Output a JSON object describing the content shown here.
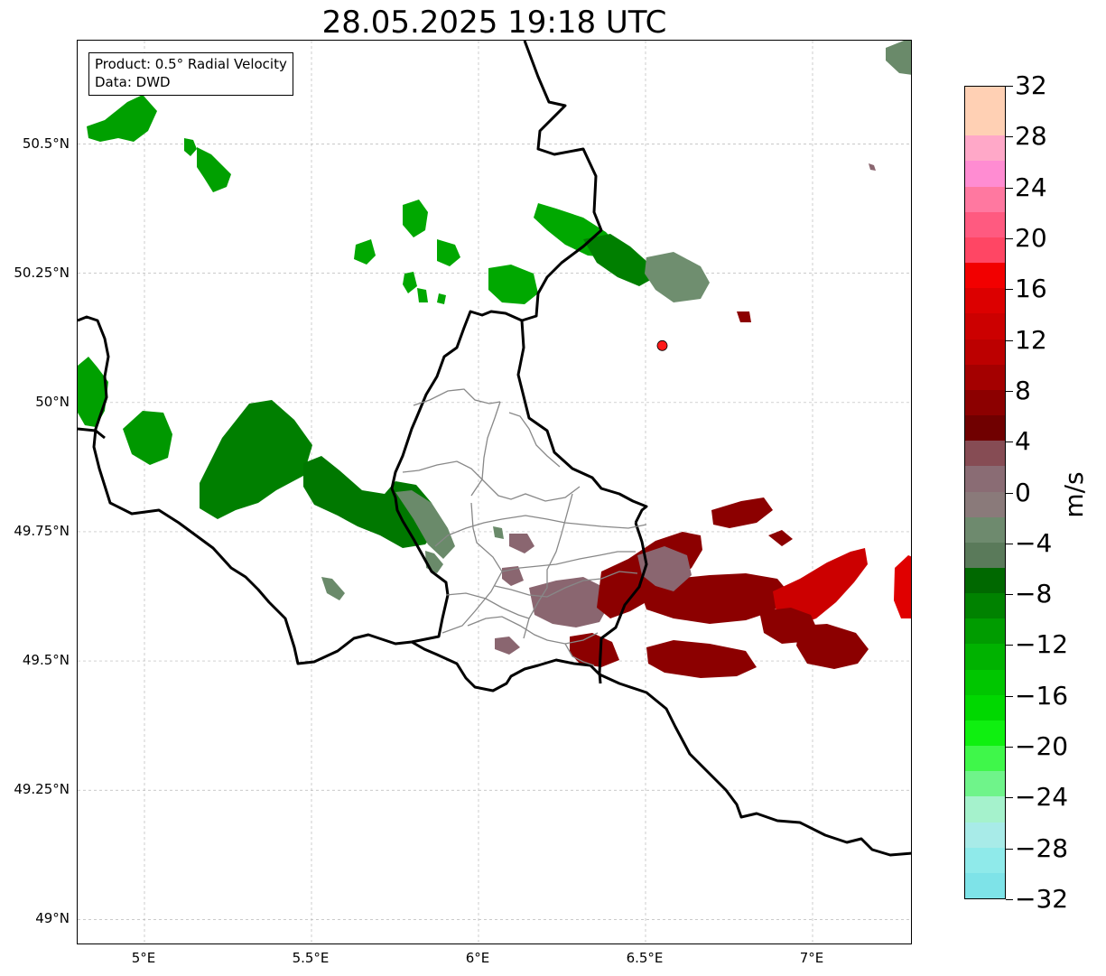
{
  "title": "28.05.2025 19:18 UTC",
  "info_box": {
    "line1": "Product: 0.5° Radial Velocity",
    "line2": "Data: DWD"
  },
  "map_extent": {
    "lon_min": 4.8,
    "lon_max": 7.3,
    "lat_min": 48.95,
    "lat_max": 50.7
  },
  "lat_ticks": [
    {
      "value": 50.5,
      "label": "50.5°N"
    },
    {
      "value": 50.25,
      "label": "50.25°N"
    },
    {
      "value": 50.0,
      "label": "50°N"
    },
    {
      "value": 49.75,
      "label": "49.75°N"
    },
    {
      "value": 49.5,
      "label": "49.5°N"
    },
    {
      "value": 49.25,
      "label": "49.25°N"
    },
    {
      "value": 49.0,
      "label": "49°N"
    }
  ],
  "lon_ticks": [
    {
      "value": 5.0,
      "label": "5°E"
    },
    {
      "value": 5.5,
      "label": "5.5°E"
    },
    {
      "value": 6.0,
      "label": "6°E"
    },
    {
      "value": 6.5,
      "label": "6.5°E"
    },
    {
      "value": 7.0,
      "label": "7°E"
    }
  ],
  "grid": true,
  "radar_site": {
    "lon": 6.55,
    "lat": 50.11,
    "color": "#ff1a1a"
  },
  "colorbar": {
    "unit": "m/s",
    "vmin": -32,
    "vmax": 32,
    "step": 2,
    "tick_labels": [
      "32",
      "28",
      "24",
      "20",
      "16",
      "12",
      "8",
      "4",
      "0",
      "−4",
      "−8",
      "−12",
      "−16",
      "−20",
      "−24",
      "−28",
      "−32"
    ],
    "colors": [
      "#7ee3e8",
      "#8feaea",
      "#a8ebe8",
      "#a5f2cc",
      "#6ff48a",
      "#3ff74a",
      "#0ff010",
      "#00d800",
      "#00c600",
      "#00b200",
      "#009c00",
      "#008200",
      "#006800",
      "#5a7a5a",
      "#6e8a6e",
      "#8a7a7a",
      "#8a6c74",
      "#864c54",
      "#700000",
      "#8c0000",
      "#a40000",
      "#bc0000",
      "#cc0000",
      "#dc0000",
      "#f20000",
      "#ff4664",
      "#ff5a80",
      "#ff78a0",
      "#ff8cd2",
      "#ffa8c8",
      "#ffd0b4",
      "#ffd0b4"
    ]
  },
  "echo_colors": {
    "green_bright": "#00b400",
    "green_mid": "#009600",
    "green_dark": "#007000",
    "green_grey": "#6a8a6a",
    "grey_red": "#8a6670",
    "red_dark": "#8c0000",
    "red_mid": "#b40000",
    "red_bright": "#e00000"
  }
}
